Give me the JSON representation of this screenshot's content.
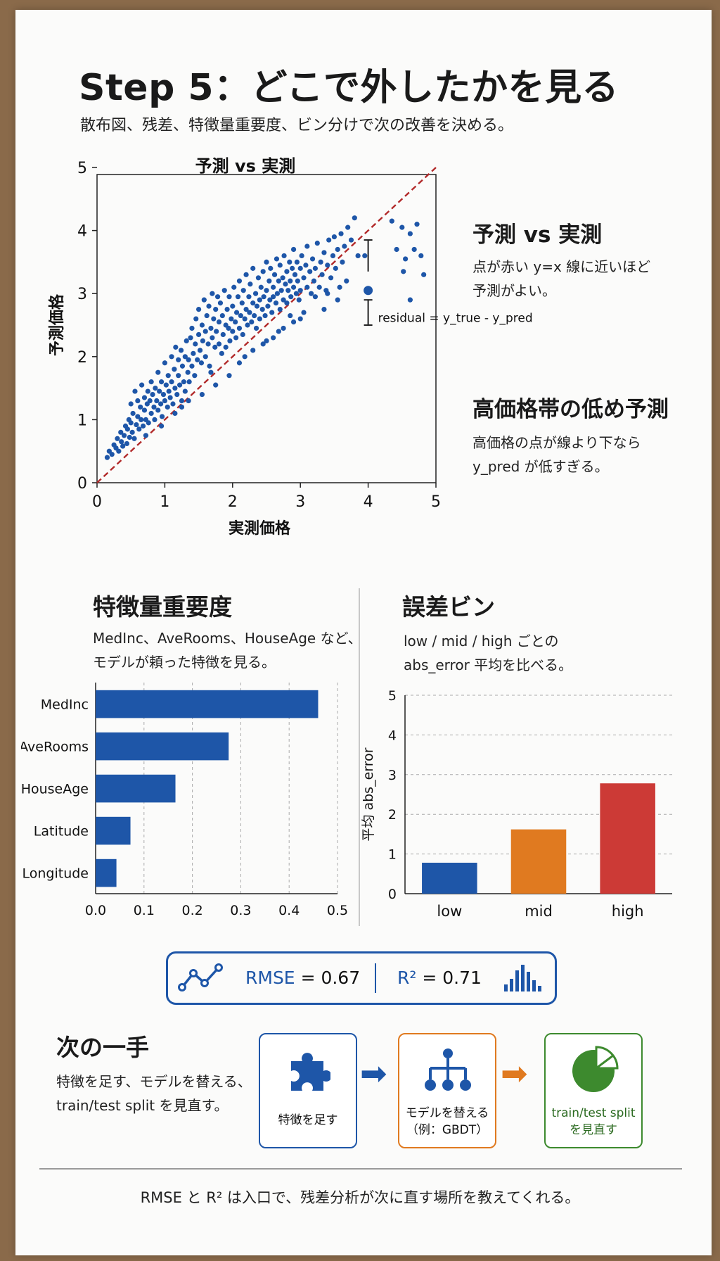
{
  "header": {
    "title": "Step 5：どこで外したかを見る",
    "subtitle": "散布図、残差、特徴量重要度、ビン分けで次の改善を決める。"
  },
  "scatter_cards": [
    {
      "title": "予測 vs 実測",
      "text_lines": [
        "点が赤い y=x 線に近いほど",
        "予測がよい。"
      ]
    },
    {
      "title": "高価格帯の低め予測",
      "text_lines": [
        "高価格の点が線より下なら",
        "y_pred が低すぎる。"
      ]
    }
  ],
  "importance_section": {
    "title": "特徴量重要度",
    "text_lines": [
      "MedInc、AveRooms、HouseAge など、",
      "モデルが頼った特徴を見る。"
    ]
  },
  "errorbin_section": {
    "title": "誤差ビン",
    "text_lines": [
      "low / mid / high ごとの",
      "abs_error 平均を比べる。"
    ]
  },
  "metrics": {
    "rmse_label": "RMSE",
    "rmse_value": "= 0.67",
    "r2_label": "R²",
    "r2_value": "= 0.71",
    "left_icon": "line-chart-icon",
    "right_icon": "bar-chart-icon"
  },
  "next_steps": {
    "title": "次の一手",
    "text_lines": [
      "特徴を足す、モデルを替える、",
      "train/test split を見直す。"
    ],
    "steps": [
      {
        "label_lines": [
          "特徴を足す"
        ],
        "icon": "puzzle-piece-icon",
        "color": "#1e56a8"
      },
      {
        "label_lines": [
          "モデルを替える",
          "（例：GBDT）"
        ],
        "icon": "tree-hierarchy-icon",
        "color": "#e07a20"
      },
      {
        "label_lines": [
          "train/test split",
          "を見直す"
        ],
        "icon": "pie-chart-icon",
        "color": "#3d8a2e"
      }
    ]
  },
  "footer": {
    "text": "RMSE と R² は入口で、残差分析が次に直す場所を教えてくれる。"
  },
  "colors": {
    "blue": "#1e56a8",
    "orange": "#e07a20",
    "red": "#cc3a36",
    "green": "#3d8a2e",
    "diag": "#b22a2a"
  },
  "chart_data": [
    {
      "type": "scatter",
      "title": "予測 vs 実測",
      "xlabel": "実測価格",
      "ylabel": "予測価格",
      "xlim": [
        0,
        5
      ],
      "ylim": [
        0,
        5
      ],
      "xticks": [
        0,
        1,
        2,
        3,
        4,
        5
      ],
      "yticks": [
        0,
        1,
        2,
        3,
        4,
        5
      ],
      "reference_line": "y=x",
      "annotation": {
        "text": "residual = y_true - y_pred",
        "x": 4.0,
        "y_true_point": 3.05,
        "bar_low": 2.5,
        "bar_high": 3.85
      },
      "points": [
        [
          0.15,
          0.4
        ],
        [
          0.18,
          0.5
        ],
        [
          0.22,
          0.45
        ],
        [
          0.25,
          0.6
        ],
        [
          0.28,
          0.55
        ],
        [
          0.3,
          0.7
        ],
        [
          0.32,
          0.5
        ],
        [
          0.35,
          0.8
        ],
        [
          0.36,
          0.65
        ],
        [
          0.38,
          0.58
        ],
        [
          0.4,
          0.75
        ],
        [
          0.42,
          0.9
        ],
        [
          0.44,
          0.62
        ],
        [
          0.45,
          0.85
        ],
        [
          0.47,
          1.0
        ],
        [
          0.48,
          0.72
        ],
        [
          0.5,
          0.95
        ],
        [
          0.5,
          1.25
        ],
        [
          0.52,
          0.8
        ],
        [
          0.53,
          1.1
        ],
        [
          0.55,
          0.7
        ],
        [
          0.56,
          1.45
        ],
        [
          0.58,
          0.92
        ],
        [
          0.6,
          1.05
        ],
        [
          0.6,
          1.3
        ],
        [
          0.62,
          0.85
        ],
        [
          0.64,
          1.2
        ],
        [
          0.65,
          1.0
        ],
        [
          0.66,
          1.55
        ],
        [
          0.68,
          0.9
        ],
        [
          0.7,
          1.15
        ],
        [
          0.7,
          1.35
        ],
        [
          0.72,
          1.0
        ],
        [
          0.74,
          1.25
        ],
        [
          0.75,
          1.45
        ],
        [
          0.76,
          0.95
        ],
        [
          0.78,
          1.3
        ],
        [
          0.8,
          1.1
        ],
        [
          0.8,
          1.6
        ],
        [
          0.82,
          1.4
        ],
        [
          0.84,
          1.2
        ],
        [
          0.85,
          1.0
        ],
        [
          0.86,
          1.5
        ],
        [
          0.88,
          1.3
        ],
        [
          0.9,
          1.15
        ],
        [
          0.9,
          1.75
        ],
        [
          0.92,
          1.45
        ],
        [
          0.94,
          1.25
        ],
        [
          0.95,
          1.6
        ],
        [
          0.96,
          1.05
        ],
        [
          0.98,
          1.4
        ],
        [
          1.0,
          1.3
        ],
        [
          1.0,
          1.9
        ],
        [
          1.02,
          1.55
        ],
        [
          1.04,
          1.2
        ],
        [
          1.05,
          1.7
        ],
        [
          1.06,
          1.45
        ],
        [
          1.08,
          1.35
        ],
        [
          1.1,
          1.6
        ],
        [
          1.1,
          2.0
        ],
        [
          1.12,
          1.25
        ],
        [
          1.14,
          1.8
        ],
        [
          1.15,
          1.5
        ],
        [
          1.16,
          2.15
        ],
        [
          1.18,
          1.4
        ],
        [
          1.2,
          1.7
        ],
        [
          1.2,
          1.95
        ],
        [
          1.22,
          1.55
        ],
        [
          1.24,
          2.1
        ],
        [
          1.25,
          1.3
        ],
        [
          1.26,
          1.85
        ],
        [
          1.28,
          1.6
        ],
        [
          1.3,
          2.0
        ],
        [
          1.3,
          1.45
        ],
        [
          1.32,
          2.25
        ],
        [
          1.34,
          1.75
        ],
        [
          1.35,
          1.95
        ],
        [
          1.36,
          1.6
        ],
        [
          1.38,
          2.3
        ],
        [
          1.4,
          1.85
        ],
        [
          1.4,
          2.45
        ],
        [
          1.42,
          2.05
        ],
        [
          1.44,
          1.7
        ],
        [
          1.45,
          2.2
        ],
        [
          1.46,
          2.6
        ],
        [
          1.48,
          1.95
        ],
        [
          1.5,
          2.35
        ],
        [
          1.5,
          2.75
        ],
        [
          1.52,
          2.1
        ],
        [
          1.54,
          1.9
        ],
        [
          1.55,
          2.5
        ],
        [
          1.56,
          2.25
        ],
        [
          1.58,
          2.9
        ],
        [
          1.6,
          2.0
        ],
        [
          1.6,
          2.4
        ],
        [
          1.62,
          2.65
        ],
        [
          1.64,
          2.2
        ],
        [
          1.65,
          2.8
        ],
        [
          1.66,
          1.85
        ],
        [
          1.68,
          2.45
        ],
        [
          1.7,
          2.3
        ],
        [
          1.7,
          3.0
        ],
        [
          1.72,
          2.6
        ],
        [
          1.74,
          2.15
        ],
        [
          1.75,
          2.75
        ],
        [
          1.76,
          2.4
        ],
        [
          1.78,
          2.95
        ],
        [
          1.8,
          2.2
        ],
        [
          1.8,
          2.55
        ],
        [
          1.82,
          2.85
        ],
        [
          1.84,
          2.05
        ],
        [
          1.85,
          2.65
        ],
        [
          1.86,
          2.35
        ],
        [
          1.88,
          3.05
        ],
        [
          1.9,
          2.5
        ],
        [
          1.9,
          2.15
        ],
        [
          1.92,
          2.75
        ],
        [
          1.94,
          2.45
        ],
        [
          1.95,
          2.95
        ],
        [
          1.96,
          2.25
        ],
        [
          1.98,
          2.6
        ],
        [
          2.0,
          2.4
        ],
        [
          2.0,
          2.8
        ],
        [
          2.02,
          3.1
        ],
        [
          2.04,
          2.55
        ],
        [
          2.05,
          2.3
        ],
        [
          2.06,
          2.7
        ],
        [
          2.08,
          2.95
        ],
        [
          2.1,
          2.45
        ],
        [
          2.1,
          3.2
        ],
        [
          2.12,
          2.65
        ],
        [
          2.14,
          2.85
        ],
        [
          2.15,
          2.35
        ],
        [
          2.16,
          3.05
        ],
        [
          2.18,
          2.6
        ],
        [
          2.2,
          2.75
        ],
        [
          2.2,
          3.3
        ],
        [
          2.22,
          2.5
        ],
        [
          2.24,
          2.95
        ],
        [
          2.25,
          2.7
        ],
        [
          2.26,
          3.15
        ],
        [
          2.28,
          2.55
        ],
        [
          2.3,
          2.85
        ],
        [
          2.3,
          3.4
        ],
        [
          2.32,
          2.65
        ],
        [
          2.34,
          3.0
        ],
        [
          2.35,
          2.45
        ],
        [
          2.36,
          2.8
        ],
        [
          2.38,
          3.25
        ],
        [
          2.4,
          2.9
        ],
        [
          2.4,
          2.6
        ],
        [
          2.42,
          3.1
        ],
        [
          2.44,
          2.75
        ],
        [
          2.45,
          3.35
        ],
        [
          2.46,
          2.95
        ],
        [
          2.48,
          2.65
        ],
        [
          2.5,
          3.05
        ],
        [
          2.5,
          3.5
        ],
        [
          2.52,
          2.8
        ],
        [
          2.54,
          3.2
        ],
        [
          2.55,
          2.9
        ],
        [
          2.56,
          3.4
        ],
        [
          2.58,
          2.7
        ],
        [
          2.6,
          3.1
        ],
        [
          2.6,
          2.95
        ],
        [
          2.62,
          3.3
        ],
        [
          2.64,
          2.85
        ],
        [
          2.65,
          3.55
        ],
        [
          2.66,
          3.0
        ],
        [
          2.68,
          3.2
        ],
        [
          2.7,
          2.75
        ],
        [
          2.7,
          3.45
        ],
        [
          2.72,
          3.05
        ],
        [
          2.74,
          3.25
        ],
        [
          2.75,
          2.9
        ],
        [
          2.76,
          3.6
        ],
        [
          2.78,
          3.15
        ],
        [
          2.8,
          3.35
        ],
        [
          2.8,
          2.85
        ],
        [
          2.82,
          3.05
        ],
        [
          2.84,
          3.5
        ],
        [
          2.85,
          3.2
        ],
        [
          2.86,
          2.95
        ],
        [
          2.88,
          3.4
        ],
        [
          2.9,
          3.1
        ],
        [
          2.9,
          3.7
        ],
        [
          2.92,
          3.3
        ],
        [
          2.94,
          3.0
        ],
        [
          2.95,
          3.5
        ],
        [
          2.96,
          3.2
        ],
        [
          2.98,
          2.9
        ],
        [
          3.0,
          3.4
        ],
        [
          3.0,
          3.05
        ],
        [
          3.02,
          3.6
        ],
        [
          3.05,
          3.25
        ],
        [
          3.08,
          3.45
        ],
        [
          3.1,
          3.1
        ],
        [
          3.1,
          3.75
        ],
        [
          3.14,
          3.35
        ],
        [
          3.16,
          3.0
        ],
        [
          3.18,
          3.55
        ],
        [
          3.2,
          3.2
        ],
        [
          3.22,
          3.4
        ],
        [
          3.25,
          3.8
        ],
        [
          3.28,
          3.1
        ],
        [
          3.3,
          3.5
        ],
        [
          3.32,
          3.3
        ],
        [
          3.35,
          3.65
        ],
        [
          3.38,
          3.05
        ],
        [
          3.4,
          3.45
        ],
        [
          3.42,
          3.85
        ],
        [
          3.45,
          3.25
        ],
        [
          3.48,
          3.6
        ],
        [
          3.5,
          3.9
        ],
        [
          3.52,
          3.4
        ],
        [
          3.55,
          3.7
        ],
        [
          3.58,
          3.1
        ],
        [
          3.6,
          3.95
        ],
        [
          3.62,
          3.5
        ],
        [
          3.65,
          3.75
        ],
        [
          3.7,
          4.05
        ],
        [
          3.75,
          3.85
        ],
        [
          3.8,
          4.2
        ],
        [
          3.85,
          3.6
        ],
        [
          3.55,
          2.9
        ],
        [
          3.35,
          2.75
        ],
        [
          3.22,
          2.95
        ],
        [
          3.05,
          2.7
        ],
        [
          2.9,
          2.55
        ],
        [
          2.75,
          2.45
        ],
        [
          2.6,
          2.3
        ],
        [
          2.45,
          2.2
        ],
        [
          2.3,
          2.1
        ],
        [
          2.18,
          2.0
        ],
        [
          1.95,
          1.7
        ],
        [
          1.75,
          1.55
        ],
        [
          1.55,
          1.4
        ],
        [
          1.35,
          1.3
        ],
        [
          1.15,
          1.1
        ],
        [
          0.95,
          0.9
        ],
        [
          3.4,
          3.0
        ],
        [
          3.0,
          2.6
        ],
        [
          2.68,
          2.4
        ],
        [
          2.5,
          2.25
        ],
        [
          2.85,
          2.65
        ],
        [
          3.68,
          3.2
        ],
        [
          2.1,
          1.9
        ],
        [
          1.68,
          1.75
        ],
        [
          1.25,
          1.2
        ],
        [
          0.72,
          0.75
        ],
        [
          4.35,
          4.15
        ],
        [
          4.5,
          4.05
        ],
        [
          4.42,
          3.7
        ],
        [
          4.55,
          3.55
        ],
        [
          4.62,
          3.95
        ],
        [
          4.68,
          3.7
        ],
        [
          4.72,
          4.1
        ],
        [
          4.78,
          3.6
        ],
        [
          4.82,
          3.3
        ],
        [
          4.62,
          2.9
        ],
        [
          4.52,
          3.35
        ],
        [
          3.95,
          3.6
        ]
      ]
    },
    {
      "type": "bar",
      "orientation": "horizontal",
      "categories": [
        "MedInc",
        "AveRooms",
        "HouseAge",
        "Latitude",
        "Longitude"
      ],
      "values": [
        0.46,
        0.275,
        0.165,
        0.072,
        0.043
      ],
      "xlim": [
        0,
        0.5
      ],
      "xticks": [
        "0.0",
        "0.1",
        "0.2",
        "0.3",
        "0.4",
        "0.5"
      ],
      "grid": "vertical-dashed",
      "color": "#1e56a8"
    },
    {
      "type": "bar",
      "categories": [
        "low",
        "mid",
        "high"
      ],
      "values": [
        0.78,
        1.62,
        2.78
      ],
      "ylabel": "平均 abs_error",
      "ylim": [
        0,
        5
      ],
      "yticks": [
        "0",
        "1",
        "2",
        "3",
        "4",
        "5"
      ],
      "grid": "horizontal-dashed",
      "colors": [
        "#1e56a8",
        "#e07a20",
        "#cc3a36"
      ]
    }
  ]
}
